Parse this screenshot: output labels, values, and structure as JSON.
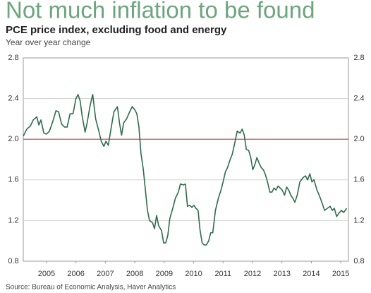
{
  "chart_data": {
    "type": "line",
    "title": "Not much inflation to be found",
    "subtitle": "PCE price index, excluding food and energy",
    "y_label": "Year over year change",
    "source": "Source: Bureau of Economic Analysis, Haver Analytics",
    "x": [
      2004.71,
      2004.83,
      2004.95,
      2005.05,
      2005.17,
      2005.24,
      2005.31,
      2005.41,
      2005.5,
      2005.6,
      2005.72,
      2005.82,
      2005.91,
      2006.01,
      2006.11,
      2006.2,
      2006.3,
      2006.4,
      2006.5,
      2006.57,
      2006.64,
      2006.71,
      2006.81,
      2006.88,
      2006.98,
      2007.07,
      2007.17,
      2007.26,
      2007.36,
      2007.45,
      2007.52,
      2007.6,
      2007.69,
      2007.79,
      2007.91,
      2007.98,
      2008.05,
      2008.12,
      2008.22,
      2008.31,
      2008.41,
      2008.5,
      2008.57,
      2008.64,
      2008.71,
      2008.79,
      2008.86,
      2008.93,
      2009.0,
      2009.1,
      2009.17,
      2009.24,
      2009.31,
      2009.41,
      2009.48,
      2009.55,
      2009.62,
      2009.69,
      2009.79,
      2009.88,
      2009.98,
      2010.05,
      2010.15,
      2010.22,
      2010.29,
      2010.36,
      2010.44,
      2010.51,
      2010.58,
      2010.65,
      2010.72,
      2010.79,
      2010.86,
      2010.93,
      2011.01,
      2011.08,
      2011.15,
      2011.24,
      2011.34,
      2011.43,
      2011.5,
      2011.58,
      2011.65,
      2011.74,
      2011.81,
      2011.91,
      2011.98,
      2012.08,
      2012.15,
      2012.22,
      2012.29,
      2012.37,
      2012.44,
      2012.51,
      2012.58,
      2012.65,
      2012.73,
      2012.8,
      2012.87,
      2012.94,
      2013.01,
      2013.09,
      2013.16,
      2013.23,
      2013.3,
      2013.37,
      2013.44,
      2013.51,
      2013.59,
      2013.66,
      2013.73,
      2013.8,
      2013.87,
      2013.94,
      2014.02,
      2014.11,
      2014.21,
      2014.3,
      2014.37,
      2014.45,
      2014.52,
      2014.59,
      2014.69,
      2014.78,
      2014.88,
      2014.95,
      2015.04,
      2015.14,
      2015.21,
      2015.28,
      2015.36,
      2015.43,
      2015.52,
      2015.6,
      2015.7
    ],
    "series": [
      {
        "color": "#2f6b4c",
        "values": [
          2.03,
          2.1,
          2.13,
          2.19,
          2.22,
          2.14,
          2.19,
          2.06,
          2.05,
          2.08,
          2.18,
          2.28,
          2.27,
          2.15,
          2.12,
          2.12,
          2.25,
          2.25,
          2.4,
          2.44,
          2.38,
          2.23,
          2.07,
          2.16,
          2.33,
          2.44,
          2.2,
          2.1,
          1.98,
          1.93,
          1.98,
          1.94,
          2.1,
          2.27,
          2.32,
          2.16,
          2.04,
          2.16,
          2.2,
          2.26,
          2.32,
          2.29,
          2.25,
          2.12,
          1.86,
          1.7,
          1.5,
          1.3,
          1.2,
          1.18,
          1.12,
          1.25,
          1.15,
          1.1,
          0.98,
          0.98,
          1.05,
          1.22,
          1.32,
          1.42,
          1.48,
          1.56,
          1.55,
          1.56,
          1.34,
          1.35,
          1.33,
          1.35,
          1.32,
          1.3,
          1.1,
          0.98,
          0.96,
          0.96,
          1.0,
          1.08,
          1.08,
          1.3,
          1.42,
          1.5,
          1.58,
          1.68,
          1.72,
          1.8,
          1.85,
          1.98,
          2.08,
          2.06,
          2.1,
          2.04,
          1.9,
          1.89,
          1.82,
          1.7,
          1.75,
          1.82,
          1.76,
          1.72,
          1.7,
          1.65,
          1.58,
          1.48,
          1.48,
          1.52,
          1.5,
          1.54,
          1.52,
          1.5,
          1.45,
          1.53,
          1.5,
          1.45,
          1.42,
          1.38,
          1.45,
          1.58,
          1.62,
          1.64,
          1.6,
          1.66,
          1.58,
          1.6,
          1.5,
          1.44,
          1.36,
          1.3,
          1.32,
          1.34,
          1.3,
          1.32,
          1.24,
          1.27,
          1.3,
          1.28,
          1.32
        ]
      }
    ],
    "xlim": [
      2004.71,
      2015.76
    ],
    "xticks": [
      {
        "value": 2005.5,
        "label": "2005"
      },
      {
        "value": 2006.5,
        "label": "2006"
      },
      {
        "value": 2007.5,
        "label": "2007"
      },
      {
        "value": 2008.5,
        "label": "2008"
      },
      {
        "value": 2009.5,
        "label": "2009"
      },
      {
        "value": 2010.5,
        "label": "2010"
      },
      {
        "value": 2011.5,
        "label": "2011"
      },
      {
        "value": 2012.5,
        "label": "2012"
      },
      {
        "value": 2013.5,
        "label": "2013"
      },
      {
        "value": 2014.5,
        "label": "2014"
      },
      {
        "value": 2015.5,
        "label": "2015"
      }
    ],
    "ylim": [
      0.8,
      2.8
    ],
    "yticks": [
      0.8,
      1.2,
      1.6,
      {
        "value": 2,
        "label": "2.0"
      },
      2.4,
      2.8
    ],
    "grid": true,
    "reference_line": 2,
    "reference_color": "#b5414a"
  }
}
